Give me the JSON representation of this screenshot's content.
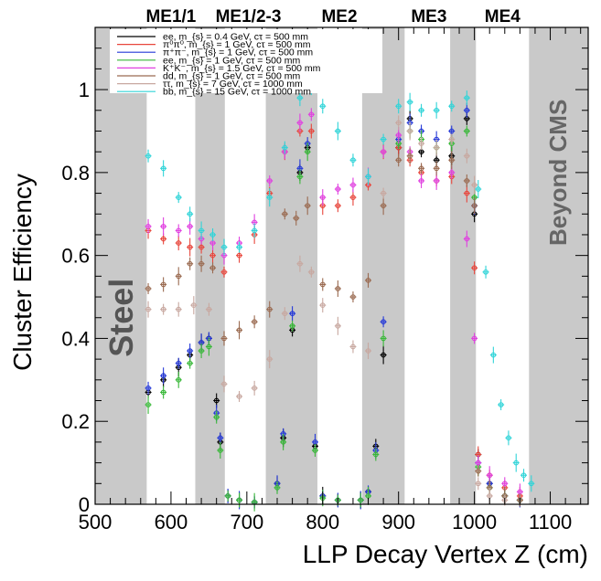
{
  "chart_data": {
    "type": "scatter",
    "title": "",
    "xlabel": "LLP Decay Vertex Z (cm)",
    "ylabel": "Cluster Efficiency",
    "xlim": [
      500,
      1150
    ],
    "ylim": [
      0,
      1.15
    ],
    "x_ticks": [
      500,
      600,
      700,
      800,
      900,
      1000,
      1100
    ],
    "y_ticks": [
      0,
      0.2,
      0.4,
      0.6,
      0.8,
      1
    ],
    "x_tick_labels": [
      "500",
      "600",
      "700",
      "800",
      "900",
      "1000",
      "1100"
    ],
    "y_tick_labels": [
      "0",
      "0.2",
      "0.4",
      "0.6",
      "0.8",
      "1"
    ],
    "shaded_regions": [
      [
        500,
        568
      ],
      [
        632,
        671
      ],
      [
        725,
        793
      ],
      [
        852,
        908
      ],
      [
        968,
        1002
      ],
      [
        1072,
        1150
      ]
    ],
    "region_labels": [
      {
        "text": "ME1/1",
        "x": 600
      },
      {
        "text": "ME1/2-3",
        "x": 702
      },
      {
        "text": "ME2",
        "x": 822
      },
      {
        "text": "ME3",
        "x": 940
      },
      {
        "text": "ME4",
        "x": 1037
      }
    ],
    "annotations": [
      {
        "text": "Steel",
        "x": 535,
        "y": 0.45
      },
      {
        "text": "Beyond CMS",
        "x": 1110,
        "y": 0.8
      }
    ],
    "series": [
      {
        "name": "ee, m_{s} = 0.4 GeV, cτ = 500 mm",
        "color": "#000000",
        "values": [
          [
            570,
            0.27
          ],
          [
            590,
            0.3
          ],
          [
            610,
            0.33
          ],
          [
            625,
            0.36
          ],
          [
            640,
            0.39
          ],
          [
            650,
            0.4
          ],
          [
            660,
            0.25
          ],
          [
            665,
            0.15
          ],
          [
            675,
            0.02
          ],
          [
            690,
            0.01
          ],
          [
            710,
            0.005
          ],
          [
            740,
            0.05
          ],
          [
            748,
            0.16
          ],
          [
            760,
            0.42
          ],
          [
            770,
            0.8
          ],
          [
            780,
            0.86
          ],
          [
            790,
            0.14
          ],
          [
            800,
            0.02
          ],
          [
            820,
            0.01
          ],
          [
            850,
            0.01
          ],
          [
            860,
            0.03
          ],
          [
            870,
            0.14
          ],
          [
            880,
            0.36
          ],
          [
            900,
            0.86
          ],
          [
            915,
            0.93
          ],
          [
            930,
            0.85
          ],
          [
            950,
            0.83
          ],
          [
            970,
            0.84
          ],
          [
            990,
            0.93
          ],
          [
            1000,
            0.7
          ],
          [
            1005,
            0.12
          ],
          [
            1020,
            0.05
          ],
          [
            1040,
            0.02
          ],
          [
            1060,
            0.01
          ]
        ]
      },
      {
        "name": "π⁰π⁰, m_{s} = 1 GeV, cτ = 500 mm",
        "color": "#e8463c",
        "values": [
          [
            570,
            0.66
          ],
          [
            590,
            0.64
          ],
          [
            610,
            0.63
          ],
          [
            625,
            0.62
          ],
          [
            640,
            0.62
          ],
          [
            655,
            0.6
          ],
          [
            670,
            0.56
          ],
          [
            690,
            0.6
          ],
          [
            710,
            0.65
          ],
          [
            730,
            0.75
          ],
          [
            750,
            0.85
          ],
          [
            770,
            0.9
          ],
          [
            785,
            0.9
          ],
          [
            800,
            0.72
          ],
          [
            820,
            0.72
          ],
          [
            840,
            0.74
          ],
          [
            860,
            0.77
          ],
          [
            880,
            0.85
          ],
          [
            900,
            0.86
          ],
          [
            915,
            0.83
          ],
          [
            930,
            0.8
          ],
          [
            950,
            0.78
          ],
          [
            970,
            0.79
          ],
          [
            990,
            0.75
          ],
          [
            1000,
            0.57
          ],
          [
            1005,
            0.12
          ],
          [
            1020,
            0.07
          ],
          [
            1040,
            0.04
          ],
          [
            1060,
            0.02
          ]
        ]
      },
      {
        "name": "π⁺π⁻, m_{s} = 1 GeV, cτ = 500 mm",
        "color": "#2438d8",
        "values": [
          [
            570,
            0.28
          ],
          [
            590,
            0.31
          ],
          [
            610,
            0.34
          ],
          [
            625,
            0.37
          ],
          [
            640,
            0.39
          ],
          [
            650,
            0.4
          ],
          [
            660,
            0.22
          ],
          [
            665,
            0.16
          ],
          [
            675,
            0.02
          ],
          [
            690,
            0.01
          ],
          [
            710,
            0.005
          ],
          [
            740,
            0.05
          ],
          [
            748,
            0.17
          ],
          [
            760,
            0.46
          ],
          [
            770,
            0.81
          ],
          [
            780,
            0.87
          ],
          [
            790,
            0.15
          ],
          [
            800,
            0.02
          ],
          [
            820,
            0.01
          ],
          [
            850,
            0.01
          ],
          [
            860,
            0.03
          ],
          [
            870,
            0.13
          ],
          [
            880,
            0.44
          ],
          [
            900,
            0.88
          ],
          [
            915,
            0.92
          ],
          [
            930,
            0.9
          ],
          [
            950,
            0.88
          ],
          [
            970,
            0.9
          ],
          [
            990,
            0.95
          ],
          [
            1000,
            0.72
          ],
          [
            1005,
            0.1
          ],
          [
            1020,
            0.05
          ],
          [
            1040,
            0.02
          ],
          [
            1060,
            0.01
          ]
        ]
      },
      {
        "name": "ee, m_{s} = 1 GeV, cτ = 500 mm",
        "color": "#38b838",
        "values": [
          [
            570,
            0.24
          ],
          [
            590,
            0.27
          ],
          [
            610,
            0.3
          ],
          [
            625,
            0.34
          ],
          [
            640,
            0.37
          ],
          [
            650,
            0.38
          ],
          [
            660,
            0.21
          ],
          [
            665,
            0.13
          ],
          [
            675,
            0.02
          ],
          [
            690,
            0.01
          ],
          [
            710,
            0.005
          ],
          [
            740,
            0.04
          ],
          [
            748,
            0.15
          ],
          [
            760,
            0.43
          ],
          [
            770,
            0.79
          ],
          [
            780,
            0.85
          ],
          [
            790,
            0.13
          ],
          [
            800,
            0.015
          ],
          [
            820,
            0.01
          ],
          [
            850,
            0.01
          ],
          [
            860,
            0.02
          ],
          [
            870,
            0.12
          ],
          [
            880,
            0.4
          ],
          [
            900,
            0.87
          ],
          [
            915,
            0.9
          ],
          [
            930,
            0.88
          ],
          [
            950,
            0.86
          ],
          [
            970,
            0.87
          ],
          [
            990,
            0.9
          ],
          [
            1000,
            0.74
          ],
          [
            1005,
            0.09
          ],
          [
            1020,
            0.04
          ],
          [
            1040,
            0.02
          ],
          [
            1060,
            0.01
          ]
        ]
      },
      {
        "name": "K⁺K⁻, m_{s} = 1.5 GeV, cτ = 500 mm",
        "color": "#e040e0",
        "values": [
          [
            570,
            0.67
          ],
          [
            590,
            0.67
          ],
          [
            610,
            0.66
          ],
          [
            625,
            0.67
          ],
          [
            640,
            0.64
          ],
          [
            655,
            0.63
          ],
          [
            670,
            0.6
          ],
          [
            690,
            0.63
          ],
          [
            710,
            0.68
          ],
          [
            730,
            0.78
          ],
          [
            750,
            0.85
          ],
          [
            770,
            0.92
          ],
          [
            785,
            0.94
          ],
          [
            800,
            0.74
          ],
          [
            820,
            0.76
          ],
          [
            840,
            0.77
          ],
          [
            860,
            0.79
          ],
          [
            880,
            0.85
          ],
          [
            900,
            0.89
          ],
          [
            915,
            0.85
          ],
          [
            930,
            0.78
          ],
          [
            950,
            0.78
          ],
          [
            970,
            0.8
          ],
          [
            990,
            0.64
          ],
          [
            1000,
            0.4
          ],
          [
            1005,
            0.1
          ],
          [
            1020,
            0.07
          ],
          [
            1040,
            0.05
          ],
          [
            1060,
            0.03
          ]
        ]
      },
      {
        "name": "dd, m_{s} = 1 GeV, cτ = 500 mm",
        "color": "#9a6a50",
        "values": [
          [
            570,
            0.52
          ],
          [
            590,
            0.53
          ],
          [
            610,
            0.55
          ],
          [
            625,
            0.58
          ],
          [
            640,
            0.58
          ],
          [
            655,
            0.57
          ],
          [
            670,
            0.4
          ],
          [
            690,
            0.42
          ],
          [
            710,
            0.44
          ],
          [
            730,
            0.47
          ],
          [
            750,
            0.7
          ],
          [
            765,
            0.69
          ],
          [
            780,
            0.72
          ],
          [
            800,
            0.53
          ],
          [
            820,
            0.52
          ],
          [
            840,
            0.5
          ],
          [
            860,
            0.54
          ],
          [
            880,
            0.72
          ],
          [
            900,
            0.83
          ],
          [
            915,
            0.84
          ],
          [
            930,
            0.81
          ],
          [
            950,
            0.81
          ],
          [
            970,
            0.83
          ],
          [
            990,
            0.78
          ],
          [
            1000,
            0.72
          ],
          [
            1005,
            0.08
          ],
          [
            1020,
            0.04
          ],
          [
            1040,
            0.02
          ],
          [
            1060,
            0.01
          ]
        ]
      },
      {
        "name": "ττ, m_{s} = 7 GeV, cτ = 1000 mm",
        "color": "#c8a8a0",
        "values": [
          [
            570,
            0.47
          ],
          [
            590,
            0.47
          ],
          [
            610,
            0.47
          ],
          [
            630,
            0.48
          ],
          [
            650,
            0.47
          ],
          [
            670,
            0.29
          ],
          [
            690,
            0.26
          ],
          [
            710,
            0.28
          ],
          [
            730,
            0.35
          ],
          [
            750,
            0.46
          ],
          [
            770,
            0.58
          ],
          [
            785,
            0.56
          ],
          [
            800,
            0.48
          ],
          [
            820,
            0.43
          ],
          [
            840,
            0.38
          ],
          [
            860,
            0.37
          ],
          [
            880,
            0.75
          ],
          [
            900,
            0.92
          ],
          [
            915,
            0.9
          ],
          [
            930,
            0.87
          ],
          [
            950,
            0.86
          ],
          [
            970,
            0.88
          ],
          [
            990,
            0.84
          ],
          [
            1000,
            0.77
          ],
          [
            1005,
            0.05
          ],
          [
            1020,
            0.02
          ],
          [
            1040,
            0.01
          ]
        ]
      },
      {
        "name": "bb, m_{s} = 15 GeV, cτ = 1000 mm",
        "color": "#30d4d8",
        "values": [
          [
            570,
            0.84
          ],
          [
            590,
            0.81
          ],
          [
            610,
            0.74
          ],
          [
            625,
            0.7
          ],
          [
            640,
            0.66
          ],
          [
            655,
            0.65
          ],
          [
            670,
            0.62
          ],
          [
            690,
            0.62
          ],
          [
            710,
            0.66
          ],
          [
            730,
            0.74
          ],
          [
            750,
            0.86
          ],
          [
            770,
            0.98
          ],
          [
            785,
            1.0
          ],
          [
            800,
            0.96
          ],
          [
            820,
            0.9
          ],
          [
            840,
            0.83
          ],
          [
            860,
            0.79
          ],
          [
            880,
            0.88
          ],
          [
            900,
            0.96
          ],
          [
            915,
            0.97
          ],
          [
            930,
            0.95
          ],
          [
            950,
            0.95
          ],
          [
            970,
            0.96
          ],
          [
            990,
            0.98
          ],
          [
            1005,
            0.76
          ],
          [
            1015,
            0.56
          ],
          [
            1025,
            0.36
          ],
          [
            1035,
            0.24
          ],
          [
            1045,
            0.16
          ],
          [
            1055,
            0.1
          ],
          [
            1065,
            0.07
          ],
          [
            1075,
            0.05
          ]
        ]
      }
    ]
  }
}
